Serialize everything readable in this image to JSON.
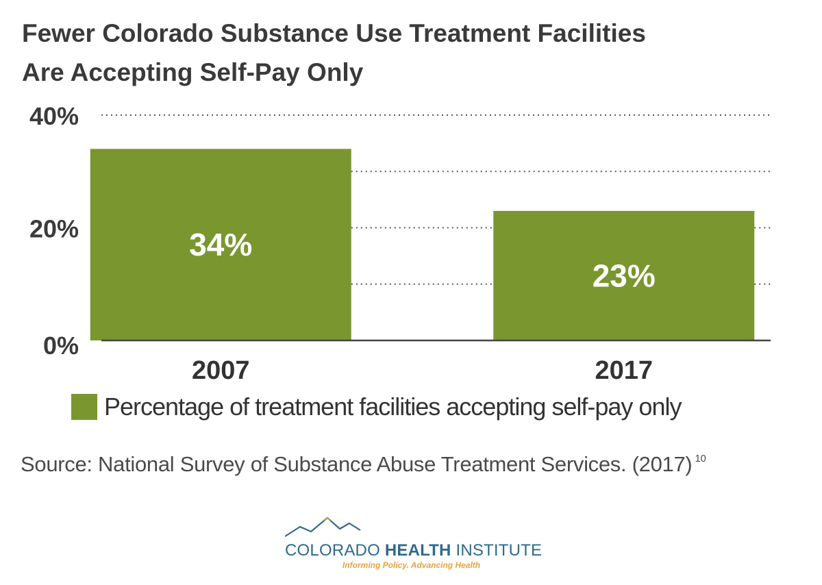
{
  "title": {
    "line1": "Fewer Colorado Substance Use Treatment Facilities",
    "line2": "Are Accepting Self-Pay Only"
  },
  "chart_data": {
    "type": "bar",
    "categories": [
      "2007",
      "2017"
    ],
    "series": [
      {
        "name": "Percentage of treatment facilities accepting self-pay only",
        "values": [
          34,
          23
        ],
        "labels": [
          "34%",
          "23%"
        ]
      }
    ],
    "ylim": [
      0,
      40
    ],
    "yticks": [
      0,
      10,
      20,
      30,
      40
    ],
    "ytick_labels": [
      "0%",
      "",
      "20%",
      "",
      "40%"
    ],
    "grid": true,
    "legend": "bottom-left",
    "bar_color": "#7a962f"
  },
  "source": {
    "text": "Source: National Survey of Substance Abuse Treatment Services. (2017)",
    "footnote": "10"
  },
  "logo": {
    "name_regular_1": "COLORADO ",
    "name_bold": "HEALTH",
    "name_regular_2": " INSTITUTE",
    "tagline": "Informing Policy. Advancing Health",
    "primary_color": "#2f6a8c",
    "accent_color": "#e8a33a"
  }
}
